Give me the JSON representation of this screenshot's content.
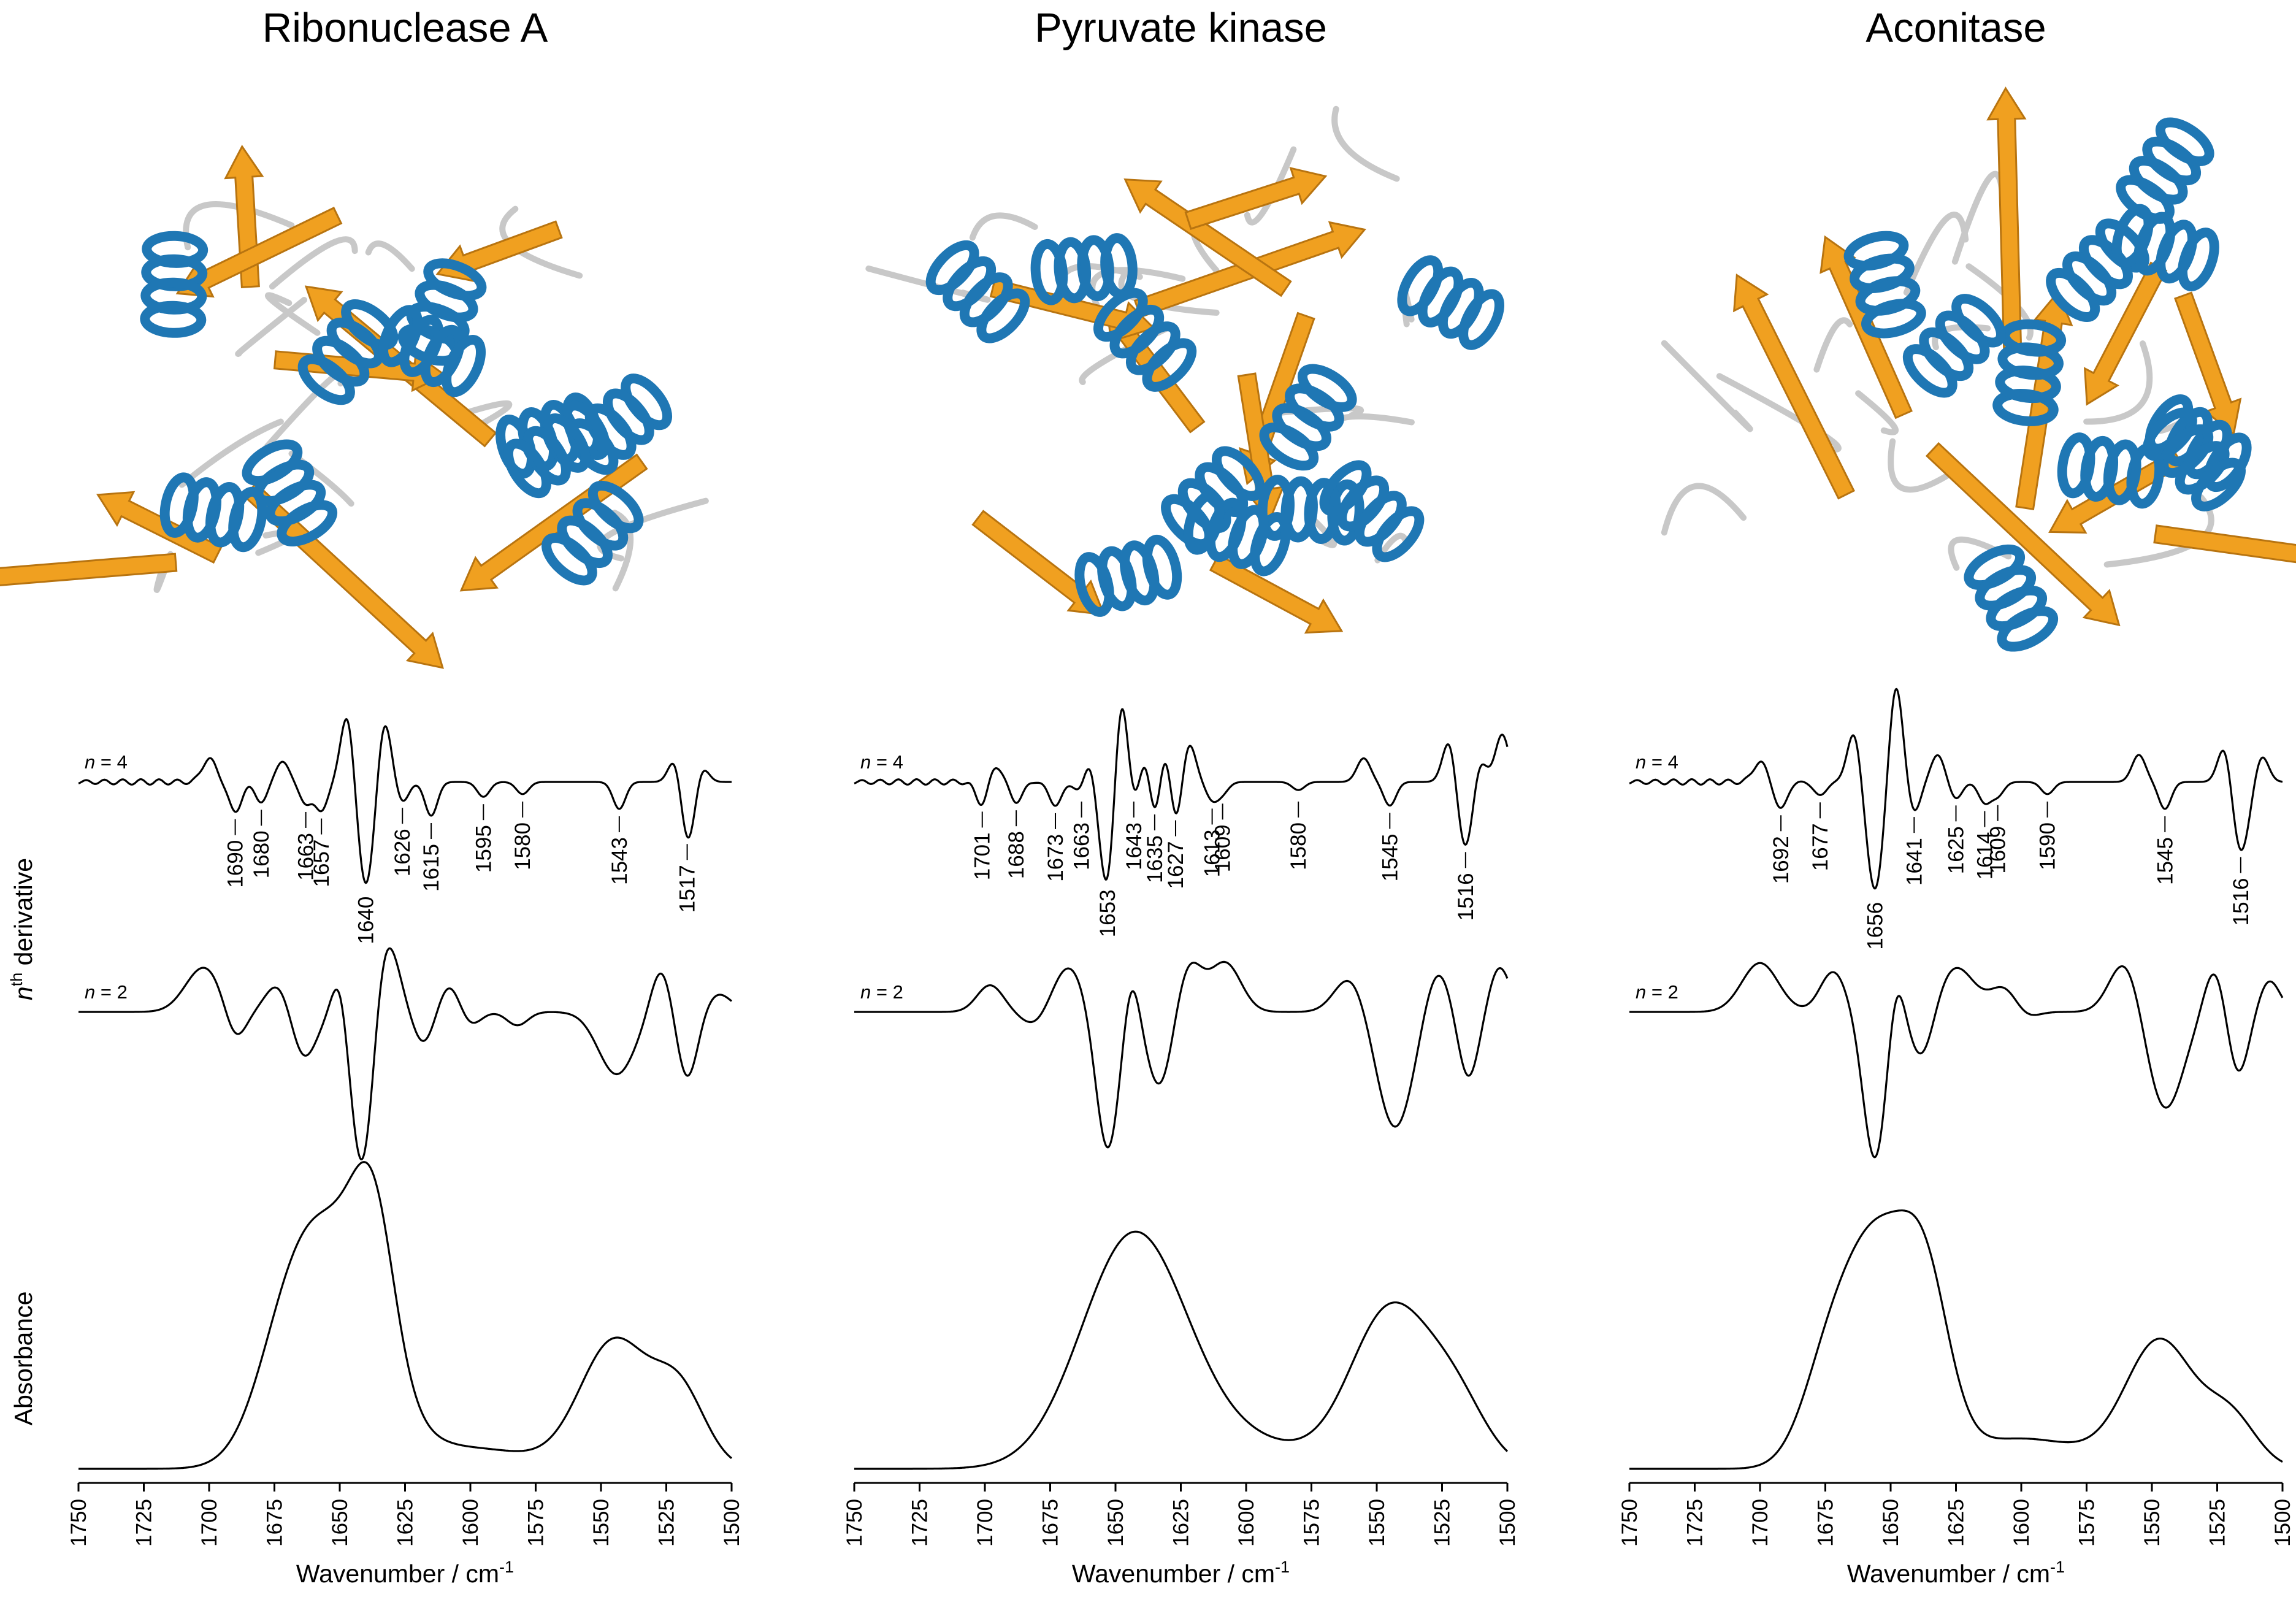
{
  "figure": {
    "ylabel_derivative_base": "n",
    "ylabel_derivative_sup": "th",
    "ylabel_derivative_rest": " derivative",
    "ylabel_absorbance": "Absorbance",
    "colors": {
      "helix": "#1f77b4",
      "strand": "#f0a020",
      "loop": "#c8c8c8",
      "line": "#000000"
    }
  },
  "chart_data": [
    {
      "type": "line",
      "title": "Ribonuclease A",
      "xlabel": "Wavenumber / cm",
      "xlabel_sup": "-1",
      "xlim": [
        1750,
        1500
      ],
      "xticks": [
        "1750",
        "1725",
        "1700",
        "1675",
        "1650",
        "1625",
        "1600",
        "1575",
        "1550",
        "1525",
        "1500"
      ],
      "series": [
        {
          "name": "n = 4",
          "label_n": "n",
          "label_rest": " = 4",
          "kind": "d4",
          "peaks": [
            1690,
            1680,
            1663,
            1657,
            1640,
            1626,
            1615,
            1595,
            1580,
            1543,
            1517
          ],
          "depths": [
            0.45,
            0.3,
            0.32,
            0.42,
            1.55,
            0.3,
            0.5,
            0.22,
            0.18,
            0.4,
            1.05
          ],
          "highs": [
            [
              1700,
              0.35
            ],
            [
              1672,
              0.3
            ],
            [
              1647,
              1.05
            ],
            [
              1633,
              0.95
            ],
            [
              1521,
              0.6
            ],
            [
              1512,
              0.35
            ]
          ]
        },
        {
          "name": "n = 2",
          "label_n": "n",
          "label_rest": " = 2",
          "kind": "d2",
          "dips": [
            [
              1690,
              0.35,
              4
            ],
            [
              1664,
              0.55,
              5
            ],
            [
              1641,
              1.9,
              4.5
            ],
            [
              1618,
              0.35,
              4
            ],
            [
              1600,
              0.15,
              4
            ],
            [
              1582,
              0.15,
              4
            ],
            [
              1544,
              0.7,
              7
            ],
            [
              1517,
              0.75,
              4
            ]
          ],
          "bumps": [
            [
              1702,
              0.5,
              7
            ],
            [
              1673,
              0.35,
              5
            ],
            [
              1650,
              0.45,
              3
            ],
            [
              1633,
              0.95,
              5
            ],
            [
              1608,
              0.3,
              4
            ],
            [
              1527,
              0.5,
              4
            ],
            [
              1505,
              0.2,
              5
            ]
          ]
        },
        {
          "name": "Absorbance",
          "kind": "abs",
          "bands": [
            [
              1652,
              0.86,
              17
            ],
            [
              1637,
              0.55,
              8
            ],
            [
              1670,
              0.3,
              12
            ],
            [
              1545,
              0.5,
              13
            ],
            [
              1520,
              0.3,
              10
            ],
            [
              1600,
              0.08,
              25
            ]
          ]
        }
      ],
      "peak_labels": [
        "1690",
        "1680",
        "1663",
        "1657",
        "1640",
        "1626",
        "1615",
        "1595",
        "1580",
        "1543",
        "1517"
      ]
    },
    {
      "type": "line",
      "title": "Pyruvate kinase",
      "xlabel": "Wavenumber / cm",
      "xlabel_sup": "-1",
      "xlim": [
        1750,
        1500
      ],
      "xticks": [
        "1750",
        "1725",
        "1700",
        "1675",
        "1650",
        "1625",
        "1600",
        "1575",
        "1550",
        "1525",
        "1500"
      ],
      "series": [
        {
          "name": "n = 4",
          "label_n": "n",
          "label_rest": " = 4",
          "kind": "d4",
          "peaks": [
            1701,
            1688,
            1673,
            1663,
            1653,
            1643,
            1635,
            1627,
            1613,
            1609,
            1580,
            1545,
            1516
          ],
          "depths": [
            0.35,
            0.3,
            0.35,
            0.25,
            1.65,
            0.4,
            0.85,
            0.75,
            0.25,
            0.15,
            0.12,
            0.35,
            1.05
          ],
          "highs": [
            [
              1696,
              0.25
            ],
            [
              1660,
              0.45
            ],
            [
              1648,
              1.55
            ],
            [
              1638,
              0.55
            ],
            [
              1631,
              0.65
            ],
            [
              1622,
              0.6
            ],
            [
              1555,
              0.35
            ],
            [
              1522,
              0.7
            ],
            [
              1511,
              0.45
            ],
            [
              1502,
              0.7
            ]
          ]
        },
        {
          "name": "n = 2",
          "label_n": "n",
          "label_rest": " = 2",
          "kind": "d2",
          "dips": [
            [
              1681,
              0.15,
              5
            ],
            [
              1653,
              1.55,
              4.5
            ],
            [
              1633,
              0.85,
              5
            ],
            [
              1543,
              1.3,
              7
            ],
            [
              1515,
              0.75,
              4
            ]
          ],
          "bumps": [
            [
              1698,
              0.3,
              5
            ],
            [
              1668,
              0.5,
              6
            ],
            [
              1644,
              0.5,
              3
            ],
            [
              1622,
              0.55,
              5
            ],
            [
              1608,
              0.55,
              6
            ],
            [
              1560,
              0.4,
              6
            ],
            [
              1527,
              0.5,
              5
            ],
            [
              1503,
              0.5,
              4
            ]
          ]
        },
        {
          "name": "Absorbance",
          "kind": "abs",
          "bands": [
            [
              1643,
              0.92,
              20
            ],
            [
              1545,
              0.62,
              15
            ],
            [
              1520,
              0.25,
              12
            ],
            [
              1600,
              0.1,
              25
            ]
          ]
        }
      ],
      "peak_labels": [
        "1701",
        "1688",
        "1673",
        "1663",
        "1653",
        "1643",
        "1635",
        "1627",
        "1613",
        "1609",
        "1580",
        "1545",
        "1516"
      ]
    },
    {
      "type": "line",
      "title": "Aconitase",
      "xlabel": "Wavenumber / cm",
      "xlabel_sup": "-1",
      "xlim": [
        1750,
        1500
      ],
      "xticks": [
        "1750",
        "1725",
        "1700",
        "1675",
        "1650",
        "1625",
        "1600",
        "1575",
        "1550",
        "1525",
        "1500"
      ],
      "series": [
        {
          "name": "n = 4",
          "label_n": "n",
          "label_rest": " = 4",
          "kind": "d4",
          "peaks": [
            1692,
            1677,
            1656,
            1641,
            1625,
            1614,
            1609,
            1590,
            1545,
            1516
          ],
          "depths": [
            0.4,
            0.2,
            1.6,
            0.45,
            0.25,
            0.3,
            0.2,
            0.18,
            0.4,
            1.05
          ],
          "highs": [
            [
              1700,
              0.3
            ],
            [
              1664,
              0.75
            ],
            [
              1648,
              1.45
            ],
            [
              1632,
              0.4
            ],
            [
              1555,
              0.4
            ],
            [
              1522,
              0.6
            ],
            [
              1508,
              0.4
            ]
          ]
        },
        {
          "name": "n = 2",
          "label_n": "n",
          "label_rest": " = 2",
          "kind": "d2",
          "dips": [
            [
              1656,
              1.65,
              4.5
            ],
            [
              1638,
              0.55,
              4.5
            ],
            [
              1600,
              0.2,
              5
            ],
            [
              1545,
              1.1,
              7
            ],
            [
              1517,
              0.7,
              4
            ]
          ],
          "bumps": [
            [
              1700,
              0.55,
              7
            ],
            [
              1672,
              0.45,
              5
            ],
            [
              1648,
              0.5,
              3
            ],
            [
              1625,
              0.5,
              7
            ],
            [
              1605,
              0.35,
              6
            ],
            [
              1560,
              0.6,
              6
            ],
            [
              1526,
              0.5,
              4
            ],
            [
              1505,
              0.35,
              4
            ]
          ]
        },
        {
          "name": "Absorbance",
          "kind": "abs",
          "bands": [
            [
              1655,
              0.9,
              14
            ],
            [
              1636,
              0.5,
              9
            ],
            [
              1675,
              0.25,
              10
            ],
            [
              1547,
              0.5,
              13
            ],
            [
              1520,
              0.2,
              10
            ],
            [
              1600,
              0.12,
              25
            ]
          ]
        }
      ],
      "peak_labels": [
        "1692",
        "1677",
        "1656",
        "1641",
        "1625",
        "1614",
        "1609",
        "1590",
        "1545",
        "1516"
      ]
    }
  ]
}
